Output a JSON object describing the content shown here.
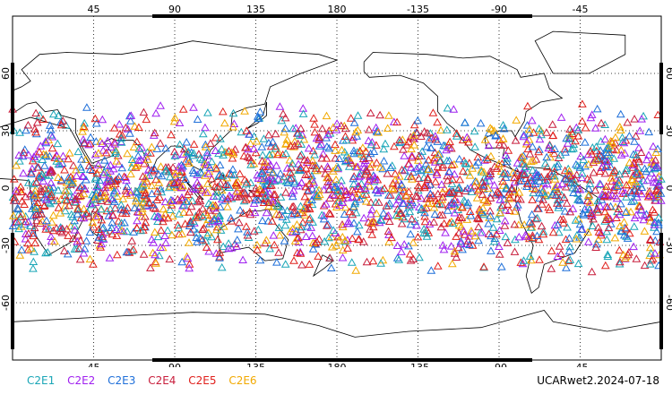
{
  "map": {
    "projection": "cylindrical-equidistant",
    "lon_range": [
      0,
      360
    ],
    "lat_range": [
      -90,
      90
    ],
    "lon_ticks": [
      "45",
      "90",
      "135",
      "180",
      "-135",
      "-90",
      "-45"
    ],
    "lat_ticks": [
      "60",
      "30",
      "0",
      "-30",
      "-60"
    ],
    "grid": "dotted",
    "marker": "triangle",
    "observation_lat_band": [
      -45,
      45
    ]
  },
  "legend": [
    {
      "label": "C2E1",
      "color": "#1aa6b7"
    },
    {
      "label": "C2E2",
      "color": "#a020f0"
    },
    {
      "label": "C2E3",
      "color": "#1e6fd9"
    },
    {
      "label": "C2E4",
      "color": "#c81e3c"
    },
    {
      "label": "C2E5",
      "color": "#e0201c"
    },
    {
      "label": "C2E6",
      "color": "#f2a900"
    }
  ],
  "stamp": "UCARwet2.2024-07-18"
}
